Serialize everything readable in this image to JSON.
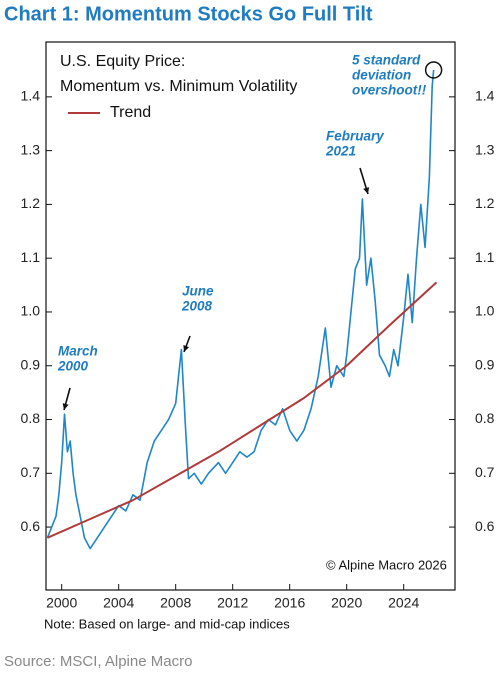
{
  "chart_data": {
    "type": "line",
    "title": "Chart 1: Momentum Stocks Go Full Tilt",
    "subtitle": [
      "U.S. Equity Price:",
      "Momentum vs. Minimum Volatility"
    ],
    "series": [
      {
        "color": "#1f86c9",
        "x": [
          1999.0,
          1999.3,
          1999.6,
          1999.8,
          2000.0,
          2000.2,
          2000.4,
          2000.6,
          2000.8,
          2001.0,
          2001.3,
          2001.6,
          2002.0,
          2002.5,
          2003.0,
          2003.5,
          2004.0,
          2004.5,
          2005.0,
          2005.5,
          2006.0,
          2006.5,
          2007.0,
          2007.5,
          2008.0,
          2008.4,
          2008.7,
          2008.9,
          2009.3,
          2009.8,
          2010.3,
          2011.0,
          2011.5,
          2012.0,
          2012.5,
          2013.0,
          2013.5,
          2014.0,
          2014.5,
          2015.0,
          2015.5,
          2016.0,
          2016.5,
          2017.0,
          2017.5,
          2018.0,
          2018.5,
          2018.9,
          2019.3,
          2019.8,
          2020.0,
          2020.3,
          2020.6,
          2020.9,
          2021.1,
          2021.4,
          2021.7,
          2022.0,
          2022.3,
          2022.7,
          2023.0,
          2023.3,
          2023.6,
          2024.0,
          2024.3,
          2024.6,
          2024.9,
          2025.2,
          2025.5,
          2025.8,
          2026.0,
          2026.1
        ],
        "values": [
          0.58,
          0.6,
          0.62,
          0.66,
          0.72,
          0.81,
          0.74,
          0.76,
          0.7,
          0.66,
          0.62,
          0.58,
          0.56,
          0.58,
          0.6,
          0.62,
          0.64,
          0.63,
          0.66,
          0.65,
          0.72,
          0.76,
          0.78,
          0.8,
          0.83,
          0.93,
          0.78,
          0.69,
          0.7,
          0.68,
          0.7,
          0.72,
          0.7,
          0.72,
          0.74,
          0.73,
          0.74,
          0.78,
          0.8,
          0.79,
          0.82,
          0.78,
          0.76,
          0.78,
          0.82,
          0.88,
          0.97,
          0.86,
          0.9,
          0.88,
          0.92,
          1.0,
          1.08,
          1.1,
          1.21,
          1.05,
          1.1,
          1.02,
          0.92,
          0.9,
          0.88,
          0.93,
          0.9,
          0.99,
          1.07,
          0.98,
          1.1,
          1.2,
          1.12,
          1.25,
          1.42,
          1.45
        ]
      },
      {
        "name": "Trend",
        "color": "#b03a3a",
        "x": [
          1999.0,
          2002.0,
          2005.0,
          2008.0,
          2011.0,
          2014.0,
          2017.0,
          2020.0,
          2023.0,
          2026.3
        ],
        "values": [
          0.58,
          0.615,
          0.65,
          0.695,
          0.74,
          0.79,
          0.84,
          0.9,
          0.975,
          1.055
        ]
      }
    ],
    "xlim": [
      1998.9,
      2027.6
    ],
    "ylim": [
      0.483,
      1.502
    ],
    "xticks": [
      2000,
      2004,
      2008,
      2012,
      2016,
      2020,
      2024
    ],
    "yticks": [
      0.6,
      0.7,
      0.8,
      0.9,
      {
        "value": 1,
        "label": "1.0"
      },
      1.1,
      1.2,
      1.3,
      1.4
    ],
    "annotations": [
      {
        "text": [
          "March",
          "2000"
        ]
      },
      {
        "text": [
          "June",
          "2008"
        ]
      },
      {
        "text": [
          "February",
          "2021"
        ]
      },
      {
        "text": [
          "5 standard",
          "deviation",
          "overshoot!!"
        ]
      }
    ],
    "copyright": "© Alpine Macro 2026",
    "note": "Note: Based on large- and mid-cap indices",
    "source": "Source: MSCI, Alpine Macro"
  }
}
